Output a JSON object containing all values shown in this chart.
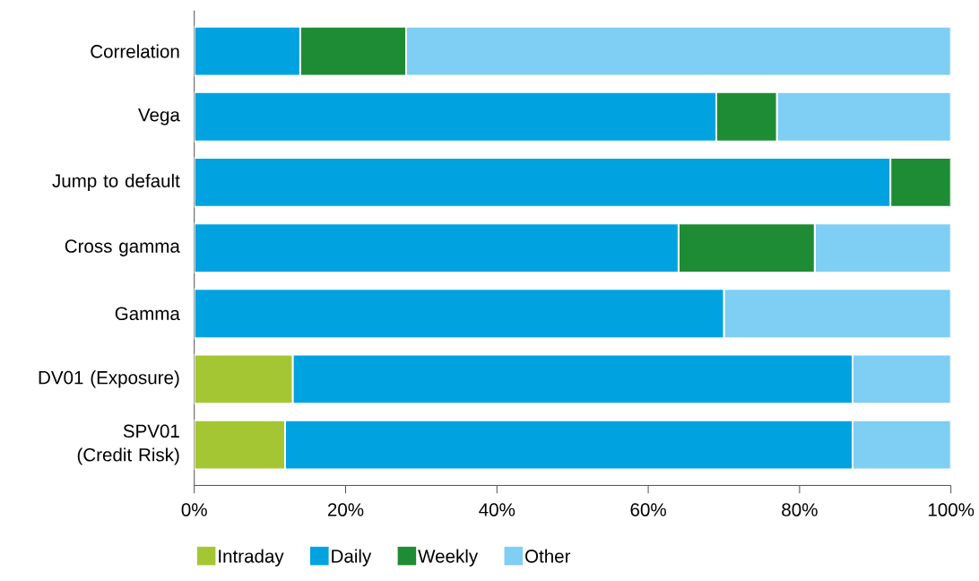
{
  "chart_data": {
    "type": "bar",
    "orientation": "horizontal",
    "stacked": true,
    "categories": [
      "Correlation",
      "Vega",
      "Jump to default",
      "Cross gamma",
      "Gamma",
      "DV01 (Exposure)",
      "SPV01 (Credit Risk)"
    ],
    "series": [
      {
        "name": "Intraday",
        "color": "#a5c633",
        "values": [
          0,
          0,
          0,
          0,
          0,
          13,
          12
        ]
      },
      {
        "name": "Daily",
        "color": "#00a3e0",
        "values": [
          14,
          69,
          92,
          64,
          70,
          74,
          75
        ]
      },
      {
        "name": "Weekly",
        "color": "#1e8c35",
        "values": [
          14,
          8,
          8,
          18,
          0,
          0,
          0
        ]
      },
      {
        "name": "Other",
        "color": "#7fcef3",
        "values": [
          72,
          23,
          0,
          18,
          30,
          13,
          13
        ]
      }
    ],
    "xlim": [
      0,
      100
    ],
    "xticks": [
      {
        "value": 0,
        "label": "0%"
      },
      {
        "value": 20,
        "label": "20%"
      },
      {
        "value": 40,
        "label": "40%"
      },
      {
        "value": 60,
        "label": "60%"
      },
      {
        "value": 80,
        "label": "80%"
      },
      {
        "value": 100,
        "label": "100%"
      }
    ],
    "grid": false,
    "legend": "bottom"
  }
}
